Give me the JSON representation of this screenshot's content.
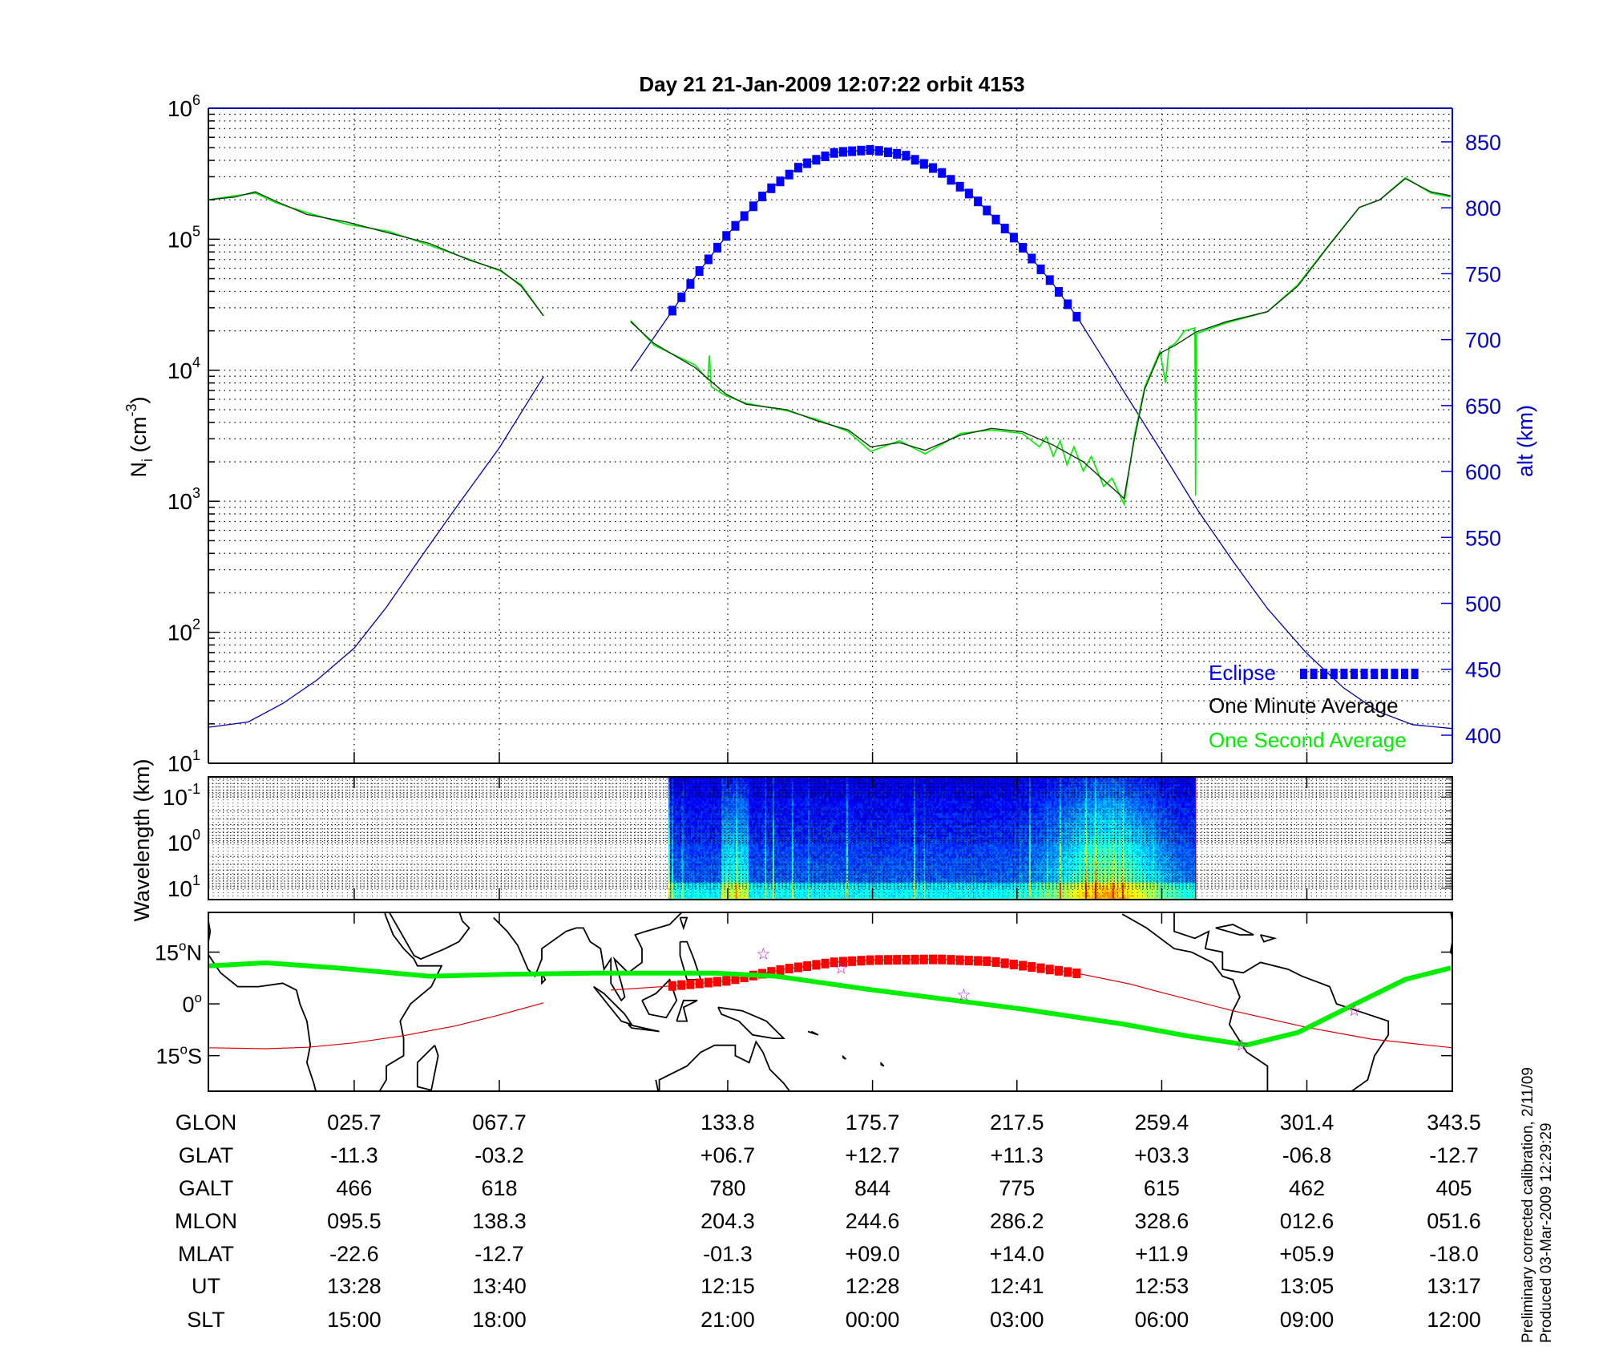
{
  "title": "Day 21  21-Jan-2009 12:07:22   orbit 4153",
  "chart_data": [
    {
      "type": "line",
      "panel": "density",
      "x_quantity": "GLON",
      "xlim": [
        -16.5,
        343.5
      ],
      "x_grid": [
        25.7,
        67.7,
        133.8,
        175.7,
        217.5,
        259.4,
        301.4,
        343.5
      ],
      "ylabel": {
        "base": "N",
        "sub": "i",
        "mid": " (cm",
        "sup": "-3",
        "end": ")"
      },
      "yscale": "log",
      "ylim": [
        10,
        1000000
      ],
      "yticks": [
        {
          "base": "10",
          "exp": "1",
          "value": 10
        },
        {
          "base": "10",
          "exp": "2",
          "value": 100
        },
        {
          "base": "10",
          "exp": "3",
          "value": 1000
        },
        {
          "base": "10",
          "exp": "4",
          "value": 10000
        },
        {
          "base": "10",
          "exp": "5",
          "value": 100000
        },
        {
          "base": "10",
          "exp": "6",
          "value": 1000000
        }
      ],
      "grid": true,
      "y2label": "alt (km)",
      "y2lim": [
        378.7,
        875.5
      ],
      "y2ticks": [
        400,
        450,
        500,
        550,
        600,
        650,
        700,
        750,
        800,
        850
      ],
      "legend_position": "bottom-right",
      "colors": {
        "axis_right": "#0000cc",
        "eclipse": "#0000ff",
        "minute": "#000000",
        "second": "#00ee00",
        "altitude": "#0000aa"
      },
      "series": [
        {
          "name": "One Minute Average",
          "key": "minute",
          "segments": [
            [
              [
                -16.5,
                200000.0
              ],
              [
                -8.8,
                210000.0
              ],
              [
                -2.9,
                230000.0
              ],
              [
                3.0,
                195000.0
              ],
              [
                11.9,
                155000.0
              ],
              [
                23.7,
                135000.0
              ],
              [
                35.6,
                112000.0
              ],
              [
                47.4,
                93000.0
              ],
              [
                59.2,
                69000.0
              ],
              [
                68.1,
                58000.0
              ],
              [
                74.0,
                44000.0
              ],
              [
                80.5,
                26000.0
              ]
            ],
            [
              [
                105.7,
                23500.0
              ],
              [
                112.5,
                16000.0
              ],
              [
                124.3,
                10500.0
              ],
              [
                133.2,
                6600.0
              ],
              [
                139.1,
                5500.0
              ],
              [
                150.9,
                5000.0
              ],
              [
                159.8,
                4100.0
              ],
              [
                168.7,
                3500.0
              ],
              [
                175.2,
                2600.0
              ],
              [
                183.5,
                2800.0
              ],
              [
                190.9,
                2450.0
              ],
              [
                201.2,
                3200.0
              ],
              [
                210.1,
                3600.0
              ],
              [
                219.0,
                3400.0
              ],
              [
                227.8,
                2700.0
              ],
              [
                236.7,
                2000.0
              ],
              [
                242.6,
                1450.0
              ],
              [
                248.5,
                1050.0
              ],
              [
                251.5,
                3000.0
              ],
              [
                254.5,
                7200.0
              ],
              [
                258.9,
                13500.0
              ],
              [
                263.3,
                15500.0
              ],
              [
                269.2,
                19500.0
              ],
              [
                278.1,
                23500.0
              ],
              [
                290.0,
                28000.0
              ],
              [
                298.8,
                44000.0
              ],
              [
                307.7,
                89000.0
              ],
              [
                316.6,
                175000.0
              ],
              [
                322.5,
                200000.0
              ],
              [
                329.9,
                290000.0
              ],
              [
                337.3,
                230000.0
              ],
              [
                343.0,
                215000.0
              ]
            ]
          ]
        },
        {
          "name": "One Second Average",
          "key": "second",
          "segments": [
            [
              [
                -16.5,
                200000.0
              ],
              [
                -8.8,
                215000.0
              ],
              [
                -2.9,
                225000.0
              ],
              [
                3.0,
                190000.0
              ],
              [
                11.9,
                160000.0
              ],
              [
                23.7,
                130000.0
              ],
              [
                35.6,
                115000.0
              ],
              [
                47.4,
                90000.0
              ],
              [
                59.2,
                70000.0
              ],
              [
                68.1,
                57000.0
              ],
              [
                74.0,
                45000.0
              ],
              [
                80.5,
                26000.0
              ]
            ],
            [
              [
                105.7,
                24000.0
              ],
              [
                112.5,
                15500.0
              ],
              [
                124.3,
                11000.0
              ],
              [
                128.0,
                8500.0
              ],
              [
                128.5,
                13000.0
              ],
              [
                129.0,
                7500.0
              ],
              [
                133.2,
                6400.0
              ],
              [
                139.1,
                5600.0
              ],
              [
                150.9,
                4900.0
              ],
              [
                159.8,
                4200.0
              ],
              [
                168.7,
                3400.0
              ],
              [
                175.2,
                2400.0
              ],
              [
                183.5,
                2900.0
              ],
              [
                190.9,
                2300.0
              ],
              [
                201.2,
                3300.0
              ],
              [
                210.1,
                3500.0
              ],
              [
                219.0,
                3300.0
              ],
              [
                224.0,
                2600.0
              ],
              [
                226.0,
                3100.0
              ],
              [
                228.0,
                2200.0
              ],
              [
                230.0,
                2900.0
              ],
              [
                232.0,
                1900.0
              ],
              [
                234.0,
                2600.0
              ],
              [
                236.7,
                1700.0
              ],
              [
                239.0,
                2200.0
              ],
              [
                242.6,
                1300.0
              ],
              [
                245.0,
                1500.0
              ],
              [
                248.5,
                950.0
              ],
              [
                251.5,
                3200.0
              ],
              [
                254.5,
                7500.0
              ],
              [
                258.9,
                14000.0
              ],
              [
                260.5,
                8000.0
              ],
              [
                261.5,
                15000.0
              ],
              [
                263.3,
                16000.0
              ],
              [
                266.0,
                20000.0
              ],
              [
                269.0,
                21000.0
              ],
              [
                269.2,
                1100.0
              ],
              [
                269.4,
                19000.0
              ],
              [
                278.1,
                23000.0
              ],
              [
                290.0,
                28000.0
              ],
              [
                298.8,
                45000.0
              ],
              [
                307.7,
                90000.0
              ],
              [
                316.6,
                175000.0
              ],
              [
                322.5,
                200000.0
              ],
              [
                329.9,
                295000.0
              ],
              [
                337.3,
                225000.0
              ],
              [
                343.0,
                210000.0
              ]
            ]
          ]
        },
        {
          "key": "altitude",
          "axis": "right",
          "segments": [
            [
              [
                -16.5,
                406
              ],
              [
                -5,
                410
              ],
              [
                5,
                424
              ],
              [
                15,
                442
              ],
              [
                25.7,
                466
              ],
              [
                35,
                497
              ],
              [
                45,
                535
              ],
              [
                55,
                572
              ],
              [
                67.7,
                618
              ],
              [
                80.5,
                672
              ]
            ],
            [
              [
                105.7,
                676
              ],
              [
                117.8,
                722
              ],
              [
                125,
                750
              ],
              [
                133.8,
                780
              ],
              [
                145,
                812
              ],
              [
                155,
                832
              ],
              [
                165,
                842
              ],
              [
                175.7,
                844
              ],
              [
                185,
                840
              ],
              [
                195,
                828
              ],
              [
                205,
                808
              ],
              [
                217.5,
                775
              ],
              [
                228,
                742
              ],
              [
                235.2,
                716
              ],
              [
                245,
                675
              ],
              [
                259.4,
                615
              ],
              [
                270,
                570
              ],
              [
                280,
                532
              ],
              [
                290,
                496
              ],
              [
                301.4,
                462
              ],
              [
                312,
                436
              ],
              [
                322,
                418
              ],
              [
                332,
                408
              ],
              [
                343.5,
                405
              ]
            ]
          ]
        },
        {
          "name": "Eclipse",
          "key": "eclipse",
          "axis": "right",
          "x_range": [
            117.8,
            235.2
          ]
        }
      ]
    },
    {
      "type": "heatmap",
      "panel": "spectrogram",
      "ylabel": "Wavelength (km)",
      "yscale": "log",
      "ylim": [
        0.036,
        17.8
      ],
      "yticks": [
        {
          "base": "10",
          "exp": "-1",
          "value": 0.1
        },
        {
          "base": "10",
          "exp": "0",
          "value": 1
        },
        {
          "base": "10",
          "exp": "1",
          "value": 10
        }
      ],
      "x_range": [
        116.6,
        269.2
      ],
      "colormap": "jet"
    },
    {
      "type": "map",
      "panel": "ground-track",
      "xlim": [
        -16.5,
        343.5
      ],
      "ylim": [
        -25.3,
        26.5
      ],
      "yticks": [
        {
          "value": 15,
          "label": "15",
          "unit": "o",
          "hemi": "N"
        },
        {
          "value": 0,
          "label": "0",
          "unit": "o",
          "hemi": ""
        },
        {
          "value": -15,
          "label": "15",
          "unit": "o",
          "hemi": "S"
        }
      ],
      "colors": {
        "track": "#dd0000",
        "eclipse": "#ff0000",
        "footprint": "#00ee00",
        "stars": "#cc00cc",
        "coast": "#000000"
      },
      "satellite_track": [
        [
          [
            -16.5,
            -12.7
          ],
          [
            0,
            -13.0
          ],
          [
            12,
            -12.6
          ],
          [
            25.7,
            -11.3
          ],
          [
            40,
            -9.2
          ],
          [
            55,
            -6.4
          ],
          [
            67.7,
            -3.2
          ],
          [
            80.5,
            0.3
          ]
        ],
        [
          [
            100,
            4.0
          ],
          [
            117.8,
            5.2
          ],
          [
            133.8,
            6.7
          ],
          [
            150,
            10.0
          ],
          [
            165,
            12.1
          ],
          [
            175.7,
            12.7
          ],
          [
            195,
            12.9
          ],
          [
            210,
            12.3
          ],
          [
            217.5,
            11.3
          ],
          [
            235.2,
            8.8
          ],
          [
            250,
            5.8
          ],
          [
            259.4,
            3.3
          ],
          [
            280,
            -2.0
          ],
          [
            301.4,
            -6.8
          ],
          [
            320,
            -10.2
          ],
          [
            343.5,
            -12.7
          ]
        ]
      ],
      "eclipse_range": [
        117.8,
        235.2
      ],
      "footprint": [
        [
          -16.5,
          11.0
        ],
        [
          0.1,
          11.9
        ],
        [
          20.8,
          10.4
        ],
        [
          47.4,
          8.0
        ],
        [
          71.1,
          8.6
        ],
        [
          94.7,
          8.9
        ],
        [
          130.2,
          8.9
        ],
        [
          147.9,
          8.0
        ],
        [
          174.5,
          4.2
        ],
        [
          218.9,
          -1.5
        ],
        [
          248.5,
          -5.9
        ],
        [
          266.3,
          -9.2
        ],
        [
          284,
          -11.9
        ],
        [
          298.8,
          -8.3
        ],
        [
          313.6,
          -0.9
        ],
        [
          329.9,
          7.1
        ],
        [
          343,
          10.4
        ]
      ],
      "stars": [
        [
          144.1,
          14.5
        ],
        [
          166.6,
          10.4
        ],
        [
          202.1,
          2.7
        ],
        [
          282.5,
          -11.9
        ],
        [
          315.1,
          -1.8
        ]
      ]
    }
  ],
  "table": {
    "rows": [
      {
        "label": "GLON",
        "values": [
          "025.7",
          "067.7",
          "133.8",
          "175.7",
          "217.5",
          "259.4",
          "301.4",
          "343.5"
        ]
      },
      {
        "label": "GLAT",
        "values": [
          "-11.3",
          "-03.2",
          "+06.7",
          "+12.7",
          "+11.3",
          "+03.3",
          "-06.8",
          "-12.7"
        ]
      },
      {
        "label": "GALT",
        "values": [
          "466",
          "618",
          "780",
          "844",
          "775",
          "615",
          "462",
          "405"
        ]
      },
      {
        "label": "MLON",
        "values": [
          "095.5",
          "138.3",
          "204.3",
          "244.6",
          "286.2",
          "328.6",
          "012.6",
          "051.6"
        ]
      },
      {
        "label": "MLAT",
        "values": [
          "-22.6",
          "-12.7",
          "-01.3",
          "+09.0",
          "+14.0",
          "+11.9",
          "+05.9",
          "-18.0"
        ]
      },
      {
        "label": "UT",
        "values": [
          "13:28",
          "13:40",
          "12:15",
          "12:28",
          "12:41",
          "12:53",
          "13:05",
          "13:17"
        ]
      },
      {
        "label": "SLT",
        "values": [
          "15:00",
          "18:00",
          "21:00",
          "00:00",
          "03:00",
          "06:00",
          "09:00",
          "12:00"
        ]
      }
    ]
  },
  "legend": {
    "eclipse": "Eclipse",
    "minute": "One Minute Average",
    "second": "One Second Average"
  },
  "footnotes": [
    "Preliminary corrected calibration, 2/11/09",
    "Produced 03-Mar-2009 12:29:29"
  ]
}
